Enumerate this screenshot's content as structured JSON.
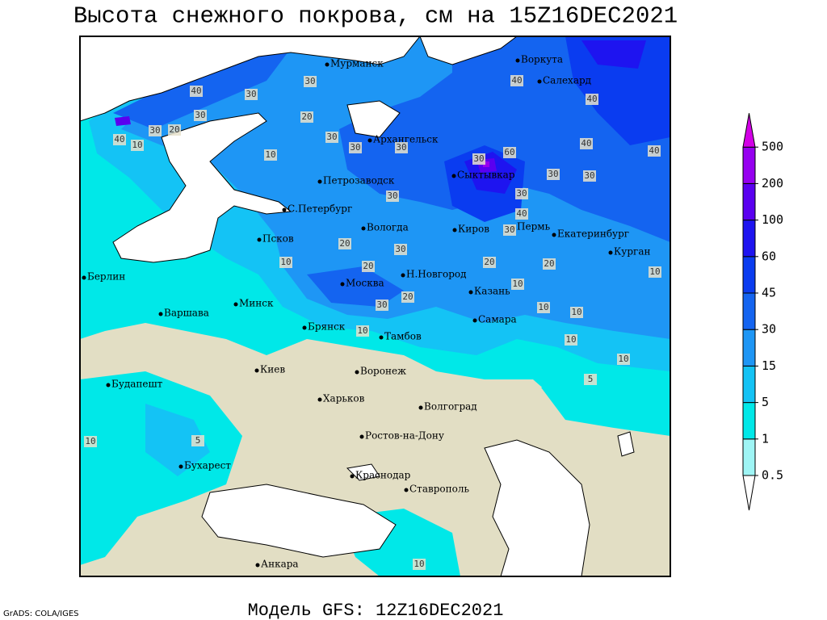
{
  "title": "Высота снежного покрова, см на 15Z16DEC2021",
  "footer": "Модель GFS: 12Z16DEC2021",
  "credit": "GrADS: COLA/IGES",
  "cities": [
    "Мурманск",
    "Воркута",
    "Салехард",
    "Архангельск",
    "Петрозаводск",
    "Сыктывкар",
    "С.Петербург",
    "Вологда",
    "Киров",
    "Пермь",
    "Екатеринбург",
    "Курган",
    "Псков",
    "Берлин",
    "Москва",
    "Н.Новгород",
    "Казань",
    "Варшава",
    "Минск",
    "Брянск",
    "Тамбов",
    "Самара",
    "Киев",
    "Воронеж",
    "Будапешт",
    "Харьков",
    "Волгоград",
    "Ростов-на-Дону",
    "Бухарест",
    "Краснодар",
    "Ставрополь",
    "Анкара"
  ],
  "contour_labels": [
    40,
    30,
    30,
    20,
    30,
    30,
    20,
    40,
    10,
    10,
    30,
    30,
    30,
    30,
    60,
    30,
    30,
    40,
    40,
    40,
    40,
    30,
    30,
    40,
    30,
    20,
    30,
    20,
    20,
    10,
    10,
    20,
    10,
    30,
    20,
    10,
    10,
    10,
    10,
    5,
    10,
    10,
    5,
    10
  ],
  "legend": {
    "levels": [
      0.5,
      1,
      5,
      15,
      30,
      45,
      60,
      100,
      200,
      500
    ],
    "colors": [
      "#ffffff",
      "#9ff5f5",
      "#00e8e8",
      "#14c3f5",
      "#1e96f5",
      "#1464f0",
      "#0a3cf0",
      "#1e14f0",
      "#5a00f0",
      "#9600f0",
      "#d200e6"
    ]
  }
}
